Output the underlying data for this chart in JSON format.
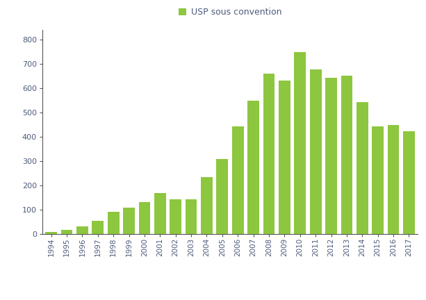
{
  "years": [
    1994,
    1995,
    1996,
    1997,
    1998,
    1999,
    2000,
    2001,
    2002,
    2003,
    2004,
    2005,
    2006,
    2007,
    2008,
    2009,
    2010,
    2011,
    2012,
    2013,
    2014,
    2015,
    2016,
    2017
  ],
  "values": [
    8,
    18,
    30,
    55,
    90,
    108,
    132,
    168,
    143,
    143,
    235,
    308,
    442,
    548,
    660,
    632,
    750,
    678,
    643,
    651,
    543,
    442,
    450,
    422
  ],
  "bar_color": "#8dc63f",
  "legend_label": "USP sous convention",
  "ylim": [
    0,
    840
  ],
  "yticks": [
    0,
    100,
    200,
    300,
    400,
    500,
    600,
    700,
    800
  ],
  "background_color": "#ffffff",
  "tick_label_color": "#4d5a7a",
  "spine_color": "#555555",
  "bar_width": 0.75
}
